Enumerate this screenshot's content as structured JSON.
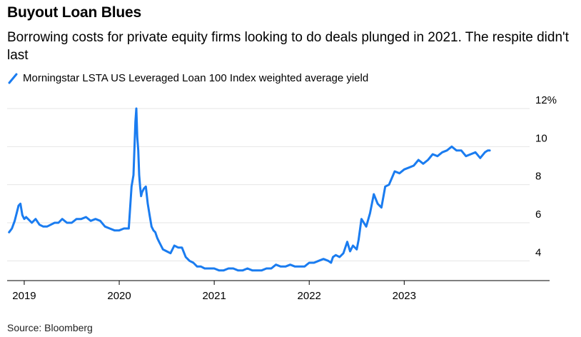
{
  "title": "Buyout Loan Blues",
  "subtitle": "Borrowing costs for private equity firms looking to do deals plunged in 2021. The respite didn't last",
  "source": "Source: Bloomberg",
  "colors": {
    "series": "#1a7cf0",
    "grid": "#e6e6e6",
    "axis": "#000000"
  },
  "chart_data": {
    "type": "line",
    "title": "Buyout Loan Blues",
    "subtitle": "Borrowing costs for private equity firms looking to do deals plunged in 2021. The respite didn't last",
    "xlabel": "",
    "ylabel": "",
    "xlim": [
      2018.82,
      2024.32
    ],
    "ylim": [
      3,
      12
    ],
    "x_ticks": [
      {
        "value": 2019,
        "label": "2019"
      },
      {
        "value": 2020,
        "label": "2020"
      },
      {
        "value": 2021,
        "label": "2021"
      },
      {
        "value": 2022,
        "label": "2022"
      },
      {
        "value": 2023,
        "label": "2023"
      }
    ],
    "y_ticks": [
      {
        "value": 4,
        "label": "4"
      },
      {
        "value": 6,
        "label": "6"
      },
      {
        "value": 8,
        "label": "8"
      },
      {
        "value": 10,
        "label": "10"
      },
      {
        "value": 12,
        "label": "12%"
      }
    ],
    "grid": "horizontal",
    "legend_position": "top-left",
    "series": [
      {
        "name": "Morningstar LSTA US Leveraged Loan 100 Index weighted average yield",
        "x": [
          2018.84,
          2018.87,
          2018.9,
          2018.92,
          2018.94,
          2018.96,
          2018.98,
          2019.0,
          2019.02,
          2019.04,
          2019.08,
          2019.12,
          2019.16,
          2019.2,
          2019.24,
          2019.28,
          2019.32,
          2019.36,
          2019.4,
          2019.45,
          2019.5,
          2019.55,
          2019.6,
          2019.65,
          2019.7,
          2019.75,
          2019.8,
          2019.85,
          2019.9,
          2019.95,
          2020.0,
          2020.05,
          2020.1,
          2020.13,
          2020.15,
          2020.17,
          2020.18,
          2020.19,
          2020.2,
          2020.21,
          2020.22,
          2020.23,
          2020.24,
          2020.26,
          2020.28,
          2020.3,
          2020.32,
          2020.34,
          2020.36,
          2020.38,
          2020.4,
          2020.42,
          2020.44,
          2020.46,
          2020.5,
          2020.54,
          2020.58,
          2020.62,
          2020.66,
          2020.7,
          2020.74,
          2020.78,
          2020.82,
          2020.86,
          2020.9,
          2020.95,
          2021.0,
          2021.05,
          2021.1,
          2021.15,
          2021.2,
          2021.25,
          2021.3,
          2021.35,
          2021.4,
          2021.45,
          2021.5,
          2021.55,
          2021.6,
          2021.65,
          2021.7,
          2021.75,
          2021.8,
          2021.85,
          2021.9,
          2021.95,
          2022.0,
          2022.05,
          2022.1,
          2022.15,
          2022.2,
          2022.23,
          2022.25,
          2022.28,
          2022.32,
          2022.36,
          2022.4,
          2022.43,
          2022.46,
          2022.5,
          2022.52,
          2022.55,
          2022.6,
          2022.64,
          2022.68,
          2022.72,
          2022.76,
          2022.8,
          2022.84,
          2022.9,
          2022.95,
          2023.0,
          2023.05,
          2023.1,
          2023.15,
          2023.2,
          2023.25,
          2023.3,
          2023.35,
          2023.4,
          2023.45,
          2023.5,
          2023.55,
          2023.6,
          2023.65,
          2023.7,
          2023.75,
          2023.8,
          2023.85,
          2023.88,
          2023.9
        ],
        "values": [
          5.5,
          5.7,
          6.1,
          6.5,
          6.9,
          7.0,
          6.4,
          6.2,
          6.3,
          6.2,
          6.0,
          6.2,
          5.9,
          5.8,
          5.8,
          5.9,
          6.0,
          6.0,
          6.2,
          6.0,
          6.0,
          6.2,
          6.2,
          6.3,
          6.1,
          6.2,
          6.1,
          5.8,
          5.7,
          5.6,
          5.6,
          5.7,
          5.7,
          7.9,
          8.5,
          11.3,
          12.0,
          10.5,
          9.8,
          8.5,
          7.9,
          7.4,
          7.6,
          7.8,
          7.9,
          7.0,
          6.4,
          5.8,
          5.6,
          5.5,
          5.2,
          5.0,
          4.8,
          4.6,
          4.5,
          4.4,
          4.8,
          4.7,
          4.7,
          4.2,
          4.0,
          3.9,
          3.7,
          3.7,
          3.6,
          3.6,
          3.6,
          3.5,
          3.5,
          3.6,
          3.6,
          3.5,
          3.5,
          3.6,
          3.5,
          3.5,
          3.5,
          3.6,
          3.6,
          3.8,
          3.7,
          3.7,
          3.8,
          3.7,
          3.7,
          3.7,
          3.9,
          3.9,
          4.0,
          4.1,
          4.0,
          3.9,
          4.2,
          4.3,
          4.2,
          4.4,
          5.0,
          4.5,
          4.8,
          4.6,
          5.1,
          6.2,
          5.8,
          6.5,
          7.5,
          7.0,
          6.8,
          7.9,
          8.0,
          8.7,
          8.6,
          8.8,
          8.9,
          9.0,
          9.3,
          9.1,
          9.3,
          9.6,
          9.5,
          9.7,
          9.8,
          10.0,
          9.8,
          9.8,
          9.5,
          9.6,
          9.7,
          9.4,
          9.7,
          9.8,
          9.8
        ]
      }
    ]
  }
}
